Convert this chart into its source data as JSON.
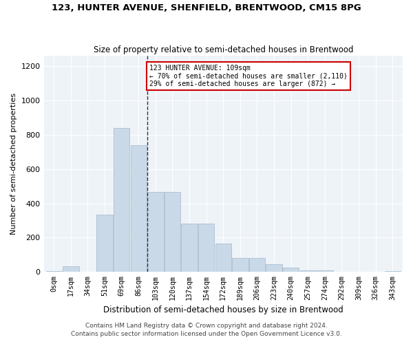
{
  "title": "123, HUNTER AVENUE, SHENFIELD, BRENTWOOD, CM15 8PG",
  "subtitle": "Size of property relative to semi-detached houses in Brentwood",
  "xlabel": "Distribution of semi-detached houses by size in Brentwood",
  "ylabel": "Number of semi-detached properties",
  "bin_labels": [
    "0sqm",
    "17sqm",
    "34sqm",
    "51sqm",
    "69sqm",
    "86sqm",
    "103sqm",
    "120sqm",
    "137sqm",
    "154sqm",
    "172sqm",
    "189sqm",
    "206sqm",
    "223sqm",
    "240sqm",
    "257sqm",
    "274sqm",
    "292sqm",
    "309sqm",
    "326sqm",
    "343sqm"
  ],
  "bar_heights": [
    5,
    35,
    0,
    335,
    840,
    740,
    465,
    465,
    280,
    280,
    165,
    80,
    80,
    45,
    25,
    10,
    10,
    3,
    3,
    3,
    5
  ],
  "bar_color": "#c9d9e8",
  "bar_edge_color": "#a0b8cc",
  "vline_x_index": 6,
  "annotation_text1": "123 HUNTER AVENUE: 109sqm",
  "annotation_text2": "← 70% of semi-detached houses are smaller (2,110)",
  "annotation_text3": "29% of semi-detached houses are larger (872) →",
  "annotation_box_color": "#ffffff",
  "annotation_box_edge": "#cc0000",
  "ylim": [
    0,
    1260
  ],
  "yticks": [
    0,
    200,
    400,
    600,
    800,
    1000,
    1200
  ],
  "footer1": "Contains HM Land Registry data © Crown copyright and database right 2024.",
  "footer2": "Contains public sector information licensed under the Open Government Licence v3.0."
}
